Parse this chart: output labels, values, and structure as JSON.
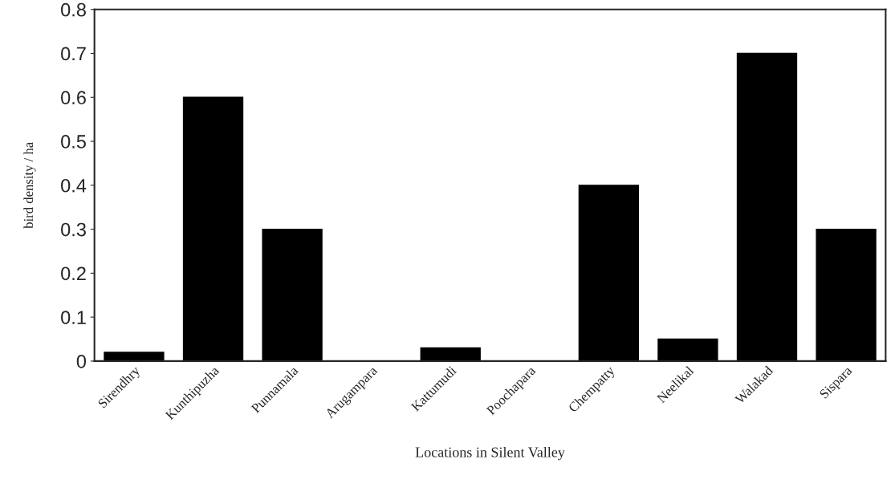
{
  "chart_data": {
    "type": "bar",
    "xlabel": "Locations in Silent Valley",
    "ylabel": "bird density / ha",
    "categories": [
      "Sirendhry",
      "Kunthipuzha",
      "Punnamala",
      "Arugampara",
      "Kattumudi",
      "Poochapara",
      "Chempatty",
      "Neelikal",
      "Walakad",
      "Sispara"
    ],
    "values": [
      0.02,
      0.6,
      0.3,
      0,
      0.03,
      0,
      0.4,
      0.05,
      0.7,
      0.3
    ],
    "color": "#000000",
    "ylim": [
      0,
      0.8
    ],
    "yticks": [
      0,
      0.1,
      0.2,
      0.3,
      0.4,
      0.5,
      0.6,
      0.7,
      0.8
    ],
    "grid": false
  }
}
